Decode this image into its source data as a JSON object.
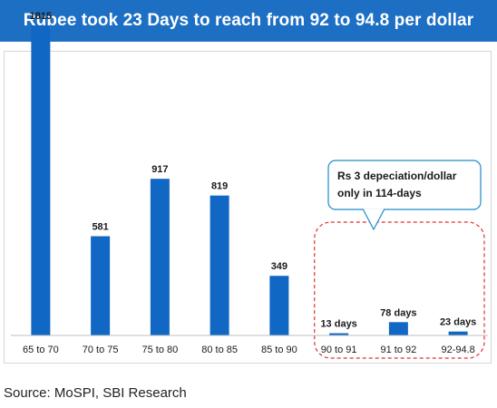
{
  "title": "Rupee took 23 Days to reach from 92 to 94.8 per dollar",
  "source": "Source: MoSPI, SBI Research",
  "colors": {
    "header": "#1d6fc4",
    "bar": "#1167c4",
    "highlight_border": "#e03030",
    "callout_border": "#1f8ac9"
  },
  "chart_data": {
    "type": "bar",
    "title": "",
    "xlabel": "",
    "ylabel": "",
    "categories": [
      "65 to 70",
      "70 to 75",
      "75 to 80",
      "80 to 85",
      "85 to 90",
      "90 to 91",
      "91 to 92",
      "92-94.8"
    ],
    "values": [
      1815,
      581,
      917,
      819,
      349,
      13,
      78,
      23
    ],
    "data_labels": [
      "1815",
      "581",
      "917",
      "819",
      "349",
      "13 days",
      "78 days",
      "23 days"
    ],
    "ylim": [
      0,
      1900
    ],
    "grid": false,
    "highlighted_categories": [
      "90 to 91",
      "91 to 92",
      "92-94.8"
    ],
    "annotation": {
      "line1": "Rs 3 depeciation/dollar",
      "line2": "only in 114-days"
    }
  }
}
